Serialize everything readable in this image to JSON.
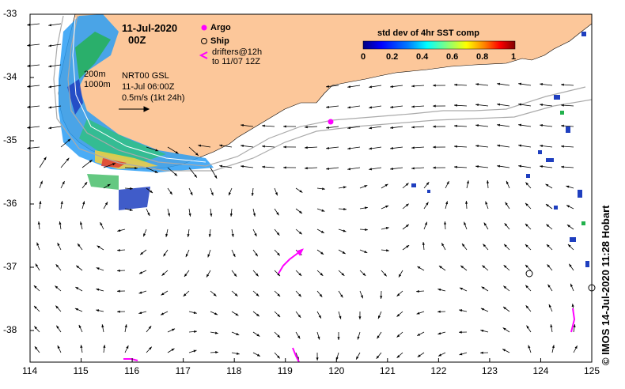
{
  "header": {
    "date": "11-Jul-2020",
    "time": "00Z"
  },
  "legend": {
    "argo_label": "Argo",
    "ship_label": "Ship",
    "drifters_line1": "drifters@12h",
    "drifters_line2": "to 11/07 12Z",
    "argo_color": "#ff00ff",
    "drifter_color": "#ff00ff"
  },
  "colorbar": {
    "title": "std dev of 4hr SST comp",
    "ticks": [
      "0",
      "0.2",
      "0.4",
      "0.6",
      "0.8",
      "1"
    ],
    "colors": [
      "#000080",
      "#0000ff",
      "#0080ff",
      "#00ffff",
      "#80ff80",
      "#ffff00",
      "#ff8000",
      "#ff0000",
      "#800000"
    ]
  },
  "annotations": {
    "contour_200": "200m",
    "contour_1000": "1000m",
    "product": "NRT00 GSL",
    "valid_time": "11-Jul 06:00Z",
    "scale_label": "0.5m/s (1kt 24h)"
  },
  "axes": {
    "x_ticks": [
      "114",
      "115",
      "116",
      "117",
      "118",
      "119",
      "120",
      "121",
      "122",
      "123",
      "124",
      "125"
    ],
    "y_ticks": [
      "-33",
      "-34",
      "-35",
      "-36",
      "-37",
      "-38"
    ],
    "xlim": [
      114,
      125
    ],
    "ylim": [
      -38.5,
      -33
    ]
  },
  "credit": "© IMOS 14-Jul-2020 11:28 Hobart",
  "colors": {
    "land": "#fcc79a",
    "ocean": "#ffffff",
    "isobath": "#aaaaaa"
  }
}
